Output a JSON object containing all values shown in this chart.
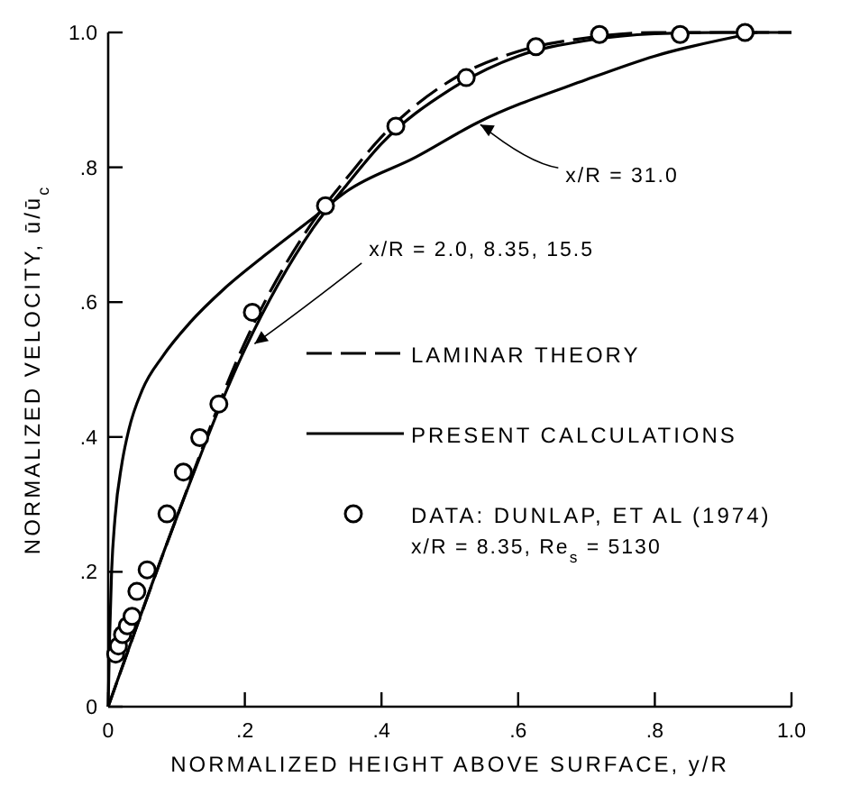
{
  "chart_data": {
    "type": "line",
    "xlabel": "NORMALIZED HEIGHT ABOVE SURFACE, y/R",
    "ylabel": "NORMALIZED VELOCITY, ū/ū$_{c}$",
    "xlim": [
      0,
      1.0
    ],
    "ylim": [
      0,
      1.0
    ],
    "xticks": [
      0,
      {
        "value": 0.2,
        "label": ".2"
      },
      {
        "value": 0.4,
        "label": ".4"
      },
      {
        "value": 0.6,
        "label": ".6"
      },
      {
        "value": 0.8,
        "label": ".8"
      },
      {
        "value": 1.0,
        "label": "1.0"
      }
    ],
    "yticks": [
      0,
      {
        "value": 0.2,
        "label": ".2"
      },
      {
        "value": 0.4,
        "label": ".4"
      },
      {
        "value": 0.6,
        "label": ".6"
      },
      {
        "value": 0.8,
        "label": ".8"
      },
      {
        "value": 1.0,
        "label": "1.0"
      }
    ],
    "grid": false,
    "legend": "right",
    "series": [
      {
        "name": "LAMINAR THEORY",
        "line_style": "dashed",
        "color": "#000000",
        "x": [
          0,
          0.1,
          0.2,
          0.3,
          0.35,
          0.4,
          0.5,
          0.6,
          0.7,
          0.8,
          0.9,
          1.0
        ],
        "values": [
          0,
          0.28,
          0.54,
          0.72,
          0.785,
          0.845,
          0.928,
          0.972,
          0.992,
          1.0,
          1.0,
          1.0
        ]
      },
      {
        "name": "PRESENT CALCULATIONS",
        "line_style": "solid",
        "color": "#000000",
        "x": [
          0,
          0.1,
          0.2,
          0.3,
          0.35,
          0.4,
          0.5,
          0.6,
          0.7,
          0.8,
          0.9,
          1.0
        ],
        "values": [
          0,
          0.28,
          0.53,
          0.71,
          0.775,
          0.835,
          0.915,
          0.965,
          0.988,
          0.998,
          1.0,
          1.0
        ]
      },
      {
        "line_style": "solid",
        "color": "#000000",
        "x": [
          0,
          0.002,
          0.005,
          0.01,
          0.02,
          0.03,
          0.05,
          0.08,
          0.12,
          0.17,
          0.23,
          0.3,
          0.35,
          0.45,
          0.54,
          0.7,
          0.8,
          0.95
        ],
        "values": [
          0,
          0.1,
          0.2,
          0.28,
          0.36,
          0.41,
          0.47,
          0.52,
          0.57,
          0.62,
          0.67,
          0.725,
          0.765,
          0.815,
          0.866,
          0.93,
          0.965,
          1.0
        ]
      },
      {
        "name": "DATA: DUNLAP, ET AL (1974)",
        "type": "scatter",
        "marker": "circle",
        "color": "#000000",
        "x": [
          0.011,
          0.015,
          0.021,
          0.028,
          0.035,
          0.042,
          0.057,
          0.086,
          0.11,
          0.134,
          0.162,
          0.211,
          0.318,
          0.421,
          0.524,
          0.626,
          0.719,
          0.837,
          0.932
        ],
        "values": [
          0.078,
          0.09,
          0.107,
          0.12,
          0.134,
          0.171,
          0.203,
          0.286,
          0.348,
          0.399,
          0.449,
          0.585,
          0.743,
          0.861,
          0.933,
          0.979,
          0.997,
          0.997,
          1.0
        ]
      }
    ],
    "annotations": [
      {
        "text": "x/R = 31.0",
        "x": 0.54,
        "y": 0.866
      },
      {
        "text": "x/R = 2.0, 8.35, 15.5",
        "x": 0.21,
        "y": 0.535
      },
      "x/R = 8.35, Re$_{s}$ = 5130"
    ]
  }
}
